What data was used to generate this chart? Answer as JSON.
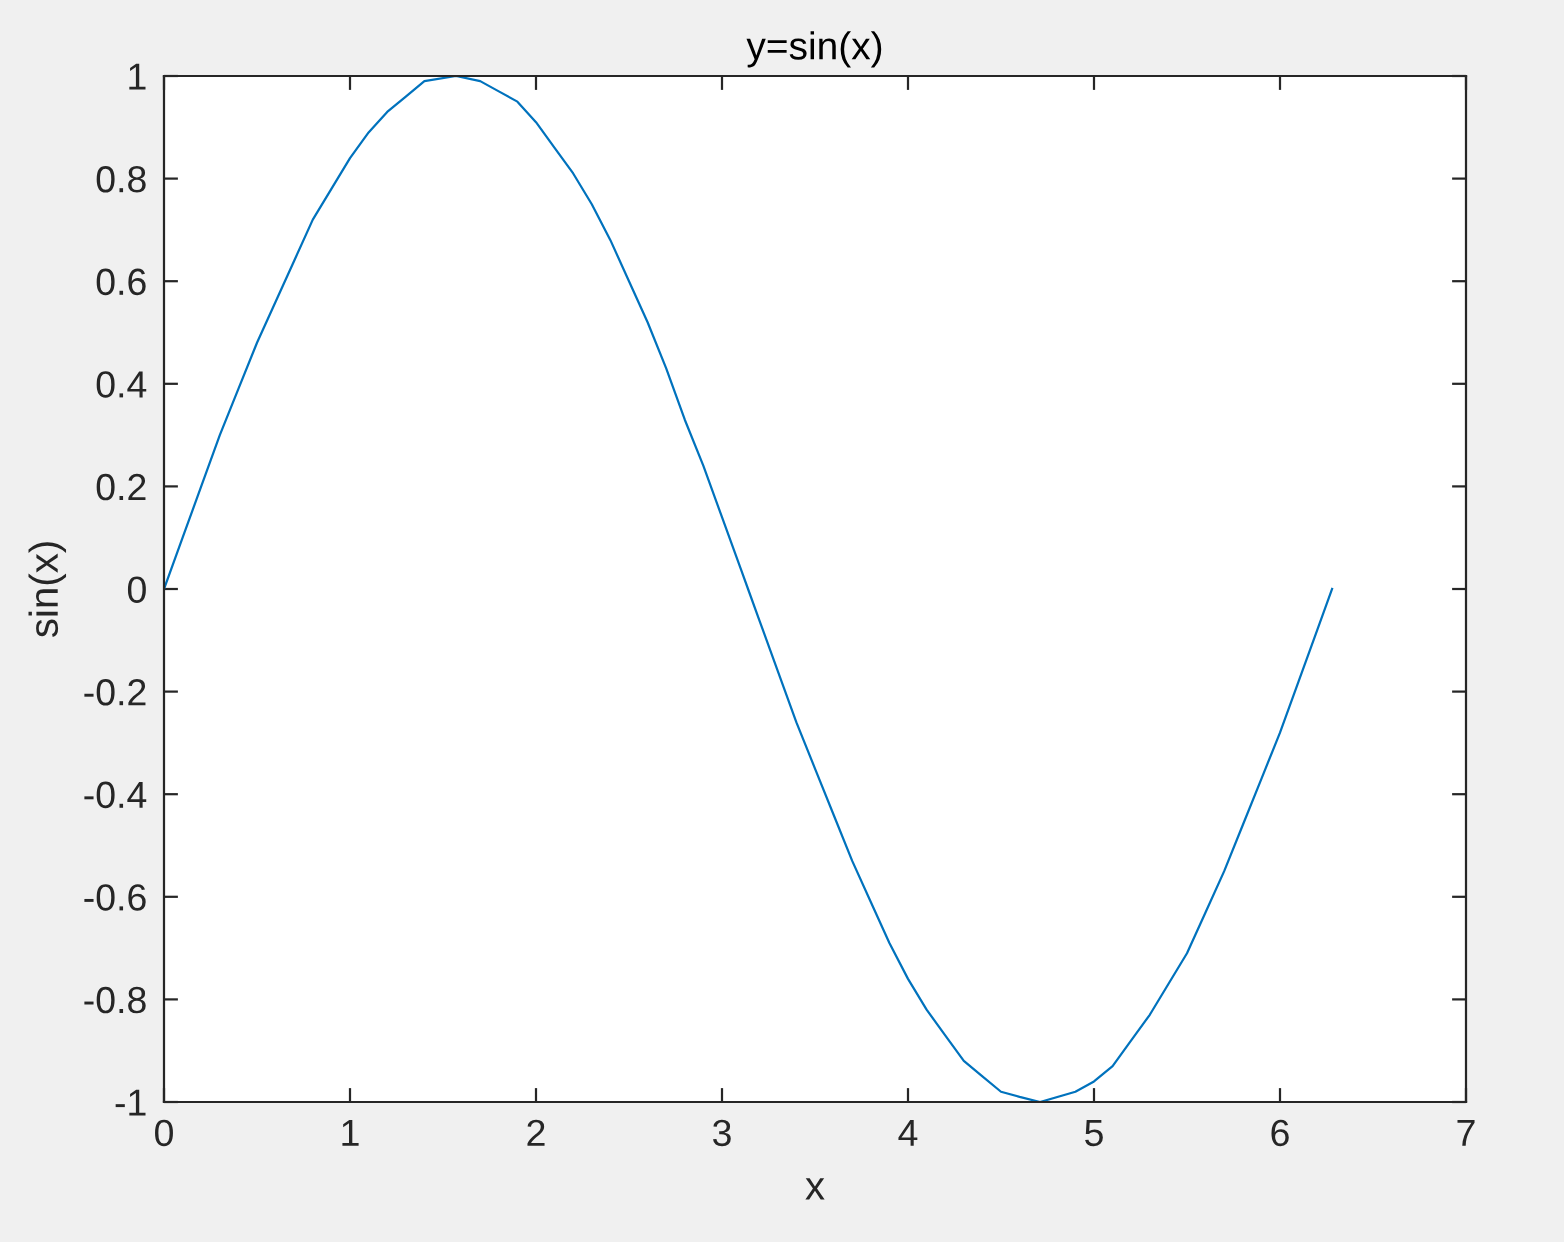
{
  "chart_data": {
    "type": "line",
    "title": "y=sin(x)",
    "xlabel": "x",
    "ylabel": "sin(x)",
    "x": [
      0,
      0.1,
      0.2,
      0.3,
      0.4,
      0.5,
      0.6,
      0.7,
      0.8,
      0.9,
      1.0,
      1.1,
      1.2,
      1.3,
      1.4,
      1.57,
      1.7,
      1.8,
      1.9,
      2.0,
      2.1,
      2.2,
      2.3,
      2.4,
      2.5,
      2.6,
      2.7,
      2.8,
      2.9,
      3.0,
      3.1,
      3.14,
      3.2,
      3.3,
      3.4,
      3.5,
      3.6,
      3.7,
      3.8,
      3.9,
      4.0,
      4.1,
      4.2,
      4.3,
      4.4,
      4.5,
      4.6,
      4.71,
      4.9,
      5.0,
      5.1,
      5.2,
      5.3,
      5.4,
      5.5,
      5.6,
      5.7,
      5.8,
      5.9,
      6.0,
      6.1,
      6.2,
      6.28
    ],
    "series": [
      {
        "color": "#0072bd",
        "values": [
          0,
          0.1,
          0.2,
          0.3,
          0.39,
          0.48,
          0.56,
          0.64,
          0.72,
          0.78,
          0.84,
          0.89,
          0.93,
          0.96,
          0.99,
          1.0,
          0.99,
          0.97,
          0.95,
          0.91,
          0.86,
          0.81,
          0.75,
          0.68,
          0.6,
          0.52,
          0.43,
          0.33,
          0.24,
          0.14,
          0.04,
          0,
          -0.06,
          -0.16,
          -0.26,
          -0.35,
          -0.44,
          -0.53,
          -0.61,
          -0.69,
          -0.76,
          -0.82,
          -0.87,
          -0.92,
          -0.95,
          -0.98,
          -0.99,
          -1.0,
          -0.98,
          -0.96,
          -0.93,
          -0.88,
          -0.83,
          -0.77,
          -0.71,
          -0.63,
          -0.55,
          -0.46,
          -0.37,
          -0.28,
          -0.18,
          -0.08,
          0
        ]
      }
    ],
    "xlim": [
      0,
      7
    ],
    "ylim": [
      -1,
      1
    ],
    "xticks": [
      0,
      1,
      2,
      3,
      4,
      5,
      6,
      7
    ],
    "yticks": [
      -1,
      -0.8,
      -0.6,
      -0.4,
      -0.2,
      0,
      0.2,
      0.4,
      0.6,
      0.8,
      1
    ]
  }
}
